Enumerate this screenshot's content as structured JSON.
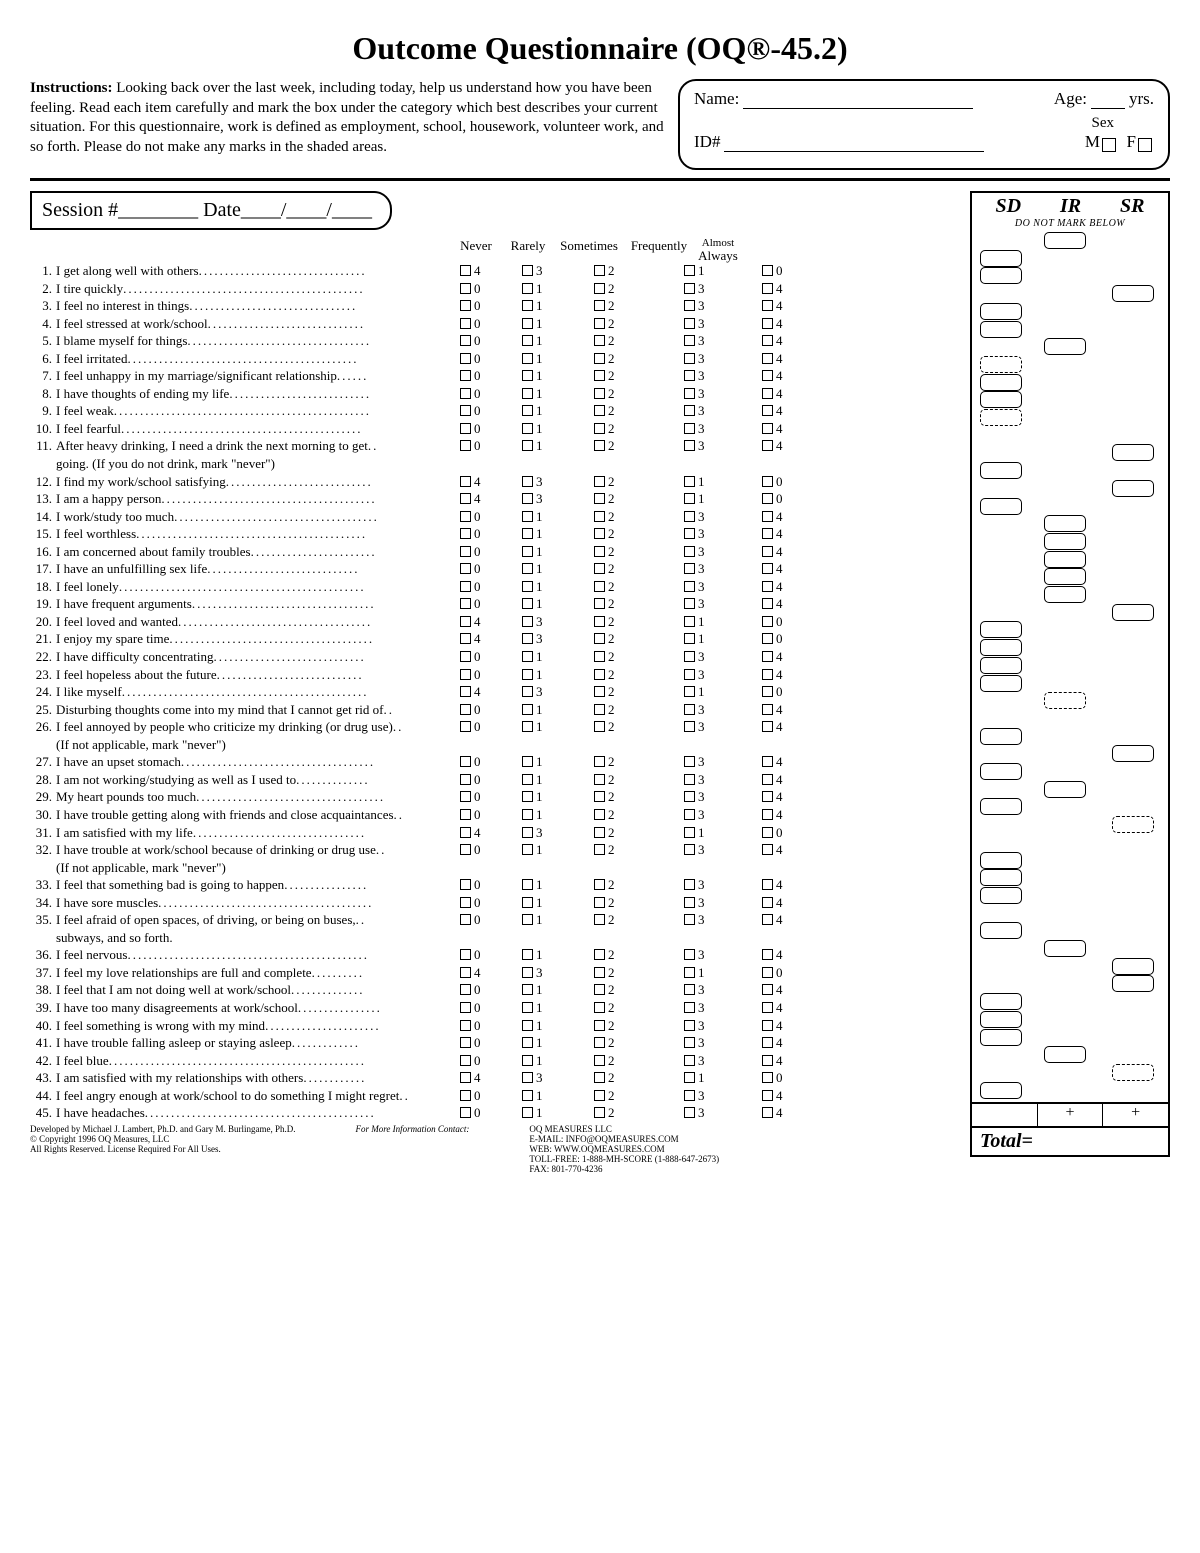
{
  "title": "Outcome Questionnaire (OQ®-45.2)",
  "instructions_label": "Instructions:",
  "instructions_text": " Looking back over the last week, including today, help us understand how you have been feeling.  Read each item carefully and mark the box under the category which best describes your current situation.  For this questionnaire, work is defined as employment, school, housework, volunteer work, and so forth. Please do not make any marks in the shaded areas.",
  "idbox": {
    "name": "Name:",
    "age": "Age:",
    "yrs": "yrs.",
    "sex": "Sex",
    "id": "ID#",
    "m": "M",
    "f": "F"
  },
  "session": "Session #________      Date____/____/____",
  "headers": {
    "never": "Never",
    "rarely": "Rarely",
    "sometimes": "Sometimes",
    "frequently": "Frequently",
    "almost": "Almost",
    "always": "Always"
  },
  "score_hdr": {
    "sd": "SD",
    "ir": "IR",
    "sr": "SR",
    "note": "DO NOT MARK BELOW"
  },
  "total": "Total=",
  "plus": "+",
  "questions": [
    {
      "n": 1,
      "t": "I get along well with others",
      "rev": true,
      "slots": [
        [
          "IR",
          0
        ]
      ]
    },
    {
      "n": 2,
      "t": "I tire quickly",
      "slots": [
        [
          "SD",
          0
        ]
      ]
    },
    {
      "n": 3,
      "t": "I feel no interest in things",
      "slots": [
        [
          "SD",
          0
        ]
      ]
    },
    {
      "n": 4,
      "t": "I feel stressed at work/school",
      "slots": [
        [
          "SR",
          0
        ]
      ]
    },
    {
      "n": 5,
      "t": "I blame myself for things",
      "slots": [
        [
          "SD",
          0
        ]
      ]
    },
    {
      "n": 6,
      "t": "I feel irritated",
      "slots": [
        [
          "SD",
          0
        ]
      ]
    },
    {
      "n": 7,
      "t": "I feel unhappy in my marriage/significant relationship",
      "slots": [
        [
          "IR",
          0
        ]
      ]
    },
    {
      "n": 8,
      "t": "I have thoughts of ending my life",
      "slots": [
        [
          "SD",
          1
        ]
      ]
    },
    {
      "n": 9,
      "t": "I feel weak",
      "slots": [
        [
          "SD",
          0
        ]
      ]
    },
    {
      "n": 10,
      "t": "I feel fearful",
      "slots": [
        [
          "SD",
          0
        ]
      ]
    },
    {
      "n": 11,
      "t": "After heavy drinking, I need a drink the next morning to get",
      "note": "going.  (If you do not drink, mark \"never\")",
      "slots": [
        [
          "SD",
          1
        ]
      ]
    },
    {
      "n": 12,
      "t": "I find my work/school satisfying",
      "rev": true,
      "slots": [
        [
          "SR",
          0
        ]
      ]
    },
    {
      "n": 13,
      "t": "I am a happy person",
      "rev": true,
      "slots": [
        [
          "SD",
          0
        ]
      ]
    },
    {
      "n": 14,
      "t": "I work/study too much",
      "slots": [
        [
          "SR",
          0
        ]
      ]
    },
    {
      "n": 15,
      "t": "I feel worthless",
      "slots": [
        [
          "SD",
          0
        ]
      ]
    },
    {
      "n": 16,
      "t": "I am concerned about family troubles",
      "slots": [
        [
          "IR",
          0
        ]
      ]
    },
    {
      "n": 17,
      "t": "I have an unfulfilling sex life",
      "slots": [
        [
          "IR",
          0
        ]
      ]
    },
    {
      "n": 18,
      "t": "I feel lonely",
      "slots": [
        [
          "IR",
          0
        ]
      ]
    },
    {
      "n": 19,
      "t": "I have frequent arguments",
      "slots": [
        [
          "IR",
          0
        ]
      ]
    },
    {
      "n": 20,
      "t": "I feel loved and wanted",
      "rev": true,
      "slots": [
        [
          "IR",
          0
        ]
      ]
    },
    {
      "n": 21,
      "t": "I enjoy my spare time",
      "rev": true,
      "slots": [
        [
          "SR",
          0
        ]
      ]
    },
    {
      "n": 22,
      "t": "I have difficulty concentrating",
      "slots": [
        [
          "SD",
          0
        ]
      ]
    },
    {
      "n": 23,
      "t": "I feel hopeless about the future",
      "slots": [
        [
          "SD",
          0
        ]
      ]
    },
    {
      "n": 24,
      "t": "I like myself",
      "rev": true,
      "slots": [
        [
          "SD",
          0
        ]
      ]
    },
    {
      "n": 25,
      "t": "Disturbing thoughts come into my mind that I cannot get rid of",
      "slots": [
        [
          "SD",
          0
        ]
      ]
    },
    {
      "n": 26,
      "t": "I feel annoyed by people who criticize my drinking (or drug use)",
      "note": "(If not applicable, mark \"never\")",
      "slots": [
        [
          "IR",
          1
        ]
      ]
    },
    {
      "n": 27,
      "t": "I have an upset stomach",
      "slots": [
        [
          "SD",
          0
        ]
      ]
    },
    {
      "n": 28,
      "t": "I am not working/studying as well as I used to",
      "slots": [
        [
          "SR",
          0
        ]
      ]
    },
    {
      "n": 29,
      "t": "My heart pounds too much",
      "slots": [
        [
          "SD",
          0
        ]
      ]
    },
    {
      "n": 30,
      "t": "I have trouble getting along with friends and close acquaintances",
      "slots": [
        [
          "IR",
          0
        ]
      ]
    },
    {
      "n": 31,
      "t": "I am satisfied with my life",
      "rev": true,
      "slots": [
        [
          "SD",
          0
        ]
      ]
    },
    {
      "n": 32,
      "t": "I have trouble at work/school because of drinking or drug use",
      "note": "(If not applicable, mark \"never\")",
      "slots": [
        [
          "SR",
          1
        ]
      ]
    },
    {
      "n": 33,
      "t": "I feel that something bad is going to happen",
      "slots": [
        [
          "SD",
          0
        ]
      ]
    },
    {
      "n": 34,
      "t": "I have sore muscles",
      "slots": [
        [
          "SD",
          0
        ]
      ]
    },
    {
      "n": 35,
      "t": "I feel afraid of open spaces, of driving, or being on buses,",
      "note": "subways, and so forth.",
      "slots": [
        [
          "SD",
          0
        ]
      ]
    },
    {
      "n": 36,
      "t": "I feel nervous",
      "slots": [
        [
          "SD",
          0
        ]
      ]
    },
    {
      "n": 37,
      "t": "I feel my love relationships are full and complete",
      "rev": true,
      "slots": [
        [
          "IR",
          0
        ]
      ]
    },
    {
      "n": 38,
      "t": "I feel that I am not doing well at work/school",
      "slots": [
        [
          "SR",
          0
        ]
      ]
    },
    {
      "n": 39,
      "t": "I have too many disagreements at work/school",
      "slots": [
        [
          "SR",
          0
        ]
      ]
    },
    {
      "n": 40,
      "t": "I feel something is wrong with my mind",
      "slots": [
        [
          "SD",
          0
        ]
      ]
    },
    {
      "n": 41,
      "t": "I have trouble falling asleep or staying asleep",
      "slots": [
        [
          "SD",
          0
        ]
      ]
    },
    {
      "n": 42,
      "t": "I feel blue",
      "slots": [
        [
          "SD",
          0
        ]
      ]
    },
    {
      "n": 43,
      "t": "I am satisfied with my relationships with others",
      "rev": true,
      "slots": [
        [
          "IR",
          0
        ]
      ]
    },
    {
      "n": 44,
      "t": "I feel angry enough at work/school to do something I might regret",
      "slots": [
        [
          "SR",
          1
        ]
      ]
    },
    {
      "n": 45,
      "t": "I have headaches",
      "slots": [
        [
          "SD",
          0
        ]
      ]
    }
  ],
  "slot_cols": {
    "SD": 8,
    "IR": 72,
    "SR": 140
  },
  "footer": {
    "left1": "Developed by Michael J. Lambert, Ph.D. and Gary M. Burlingame, Ph.D.",
    "left2": "© Copyright 1996 OQ Measures, LLC",
    "left3": "All Rights Reserved.  License Required For All Uses.",
    "mid": "For More Information Contact:",
    "right1": "OQ MEASURES LLC",
    "right2": "E-MAIL: INFO@OQMEASURES.COM",
    "right3": "WEB: WWW.OQMEASURES.COM",
    "right4": "TOLL-FREE: 1-888-MH-SCORE (1-888-647-2673)",
    "right5": "FAX: 801-770-4236"
  }
}
